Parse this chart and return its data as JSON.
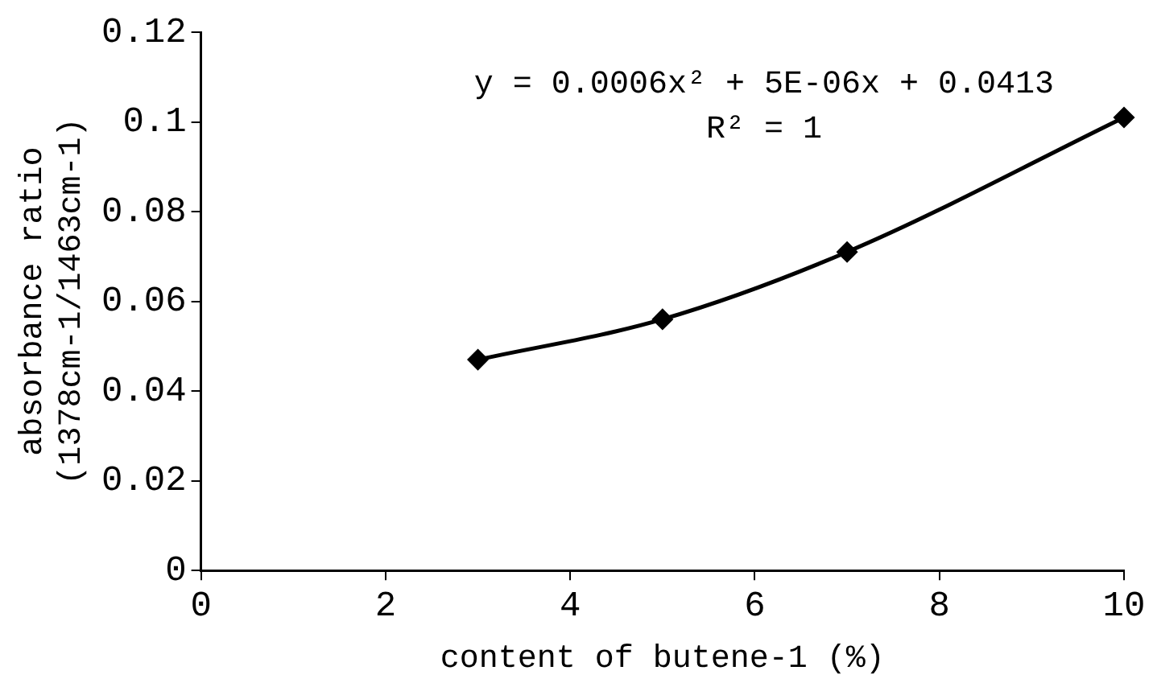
{
  "chart_data": {
    "type": "line",
    "xlabel": "content of butene-1 (%)",
    "ylabel": "absorbance ratio\n(1378cm-1/1463cm-1)",
    "x": [
      3,
      5,
      7,
      10
    ],
    "series": [
      {
        "color": "#000000",
        "values": [
          0.047,
          0.056,
          0.071,
          0.101
        ]
      }
    ],
    "xlim": [
      0,
      10
    ],
    "xticks": [
      0,
      2,
      4,
      6,
      8,
      10
    ],
    "ylim": [
      0,
      0.12
    ],
    "yticks": [
      0,
      0.02,
      0.04,
      0.06,
      0.08,
      0.1,
      0.12
    ],
    "grid": false,
    "legend": false,
    "marker": "diamond",
    "line_style": "solid",
    "annotations": [
      "y = 0.0006x² + 5E-06x + 0.0413",
      "R² = 1"
    ]
  }
}
